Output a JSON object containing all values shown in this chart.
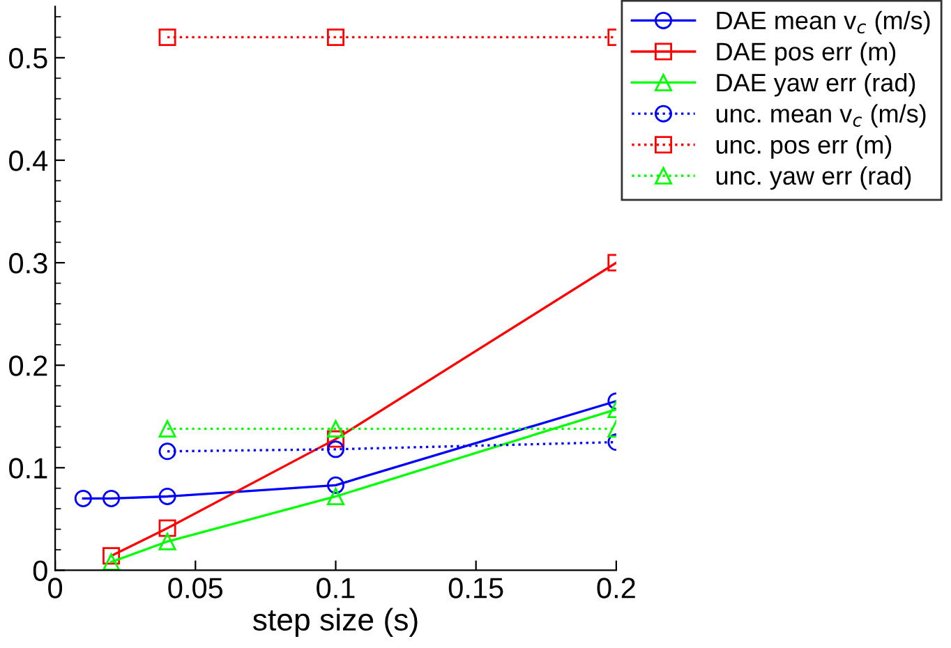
{
  "chart_data": {
    "type": "line",
    "xlabel": "step size (s)",
    "xlim": [
      0,
      0.2
    ],
    "xticks": [
      0,
      0.05,
      0.1,
      0.15,
      0.2
    ],
    "ylim": [
      0,
      0.55
    ],
    "yticks": [
      0,
      0.1,
      0.2,
      0.3,
      0.4,
      0.5
    ],
    "grid": false,
    "legend": "top right",
    "series": [
      {
        "name": "DAE mean v$_{c}$ (m/s)",
        "color": "#0000ff",
        "marker": "circle",
        "line_style": "solid",
        "x": [
          0.01,
          0.02,
          0.04,
          0.1,
          0.2
        ],
        "values": [
          0.07,
          0.07,
          0.072,
          0.083,
          0.165
        ]
      },
      {
        "name": "DAE pos err (m)",
        "color": "#ff0000",
        "marker": "square",
        "line_style": "solid",
        "x": [
          0.02,
          0.04,
          0.1,
          0.2
        ],
        "values": [
          0.014,
          0.041,
          0.128,
          0.3
        ]
      },
      {
        "name": "DAE yaw err (rad)",
        "color": "#00ff00",
        "marker": "triangle",
        "line_style": "solid",
        "x": [
          0.02,
          0.04,
          0.1,
          0.2
        ],
        "values": [
          0.008,
          0.028,
          0.072,
          0.157
        ]
      },
      {
        "name": "unc. mean v$_{c}$ (m/s)",
        "color": "#0000ff",
        "marker": "circle",
        "line_style": "dotted",
        "x": [
          0.04,
          0.1,
          0.2
        ],
        "values": [
          0.116,
          0.118,
          0.125
        ]
      },
      {
        "name": "unc. pos err (m)",
        "color": "#ff0000",
        "marker": "square",
        "line_style": "dotted",
        "x": [
          0.04,
          0.1,
          0.2
        ],
        "values": [
          0.52,
          0.52,
          0.52
        ]
      },
      {
        "name": "unc. yaw err (rad)",
        "color": "#00ff00",
        "marker": "triangle",
        "line_style": "dotted",
        "x": [
          0.04,
          0.1,
          0.2
        ],
        "values": [
          0.138,
          0.138,
          0.138
        ]
      }
    ]
  }
}
